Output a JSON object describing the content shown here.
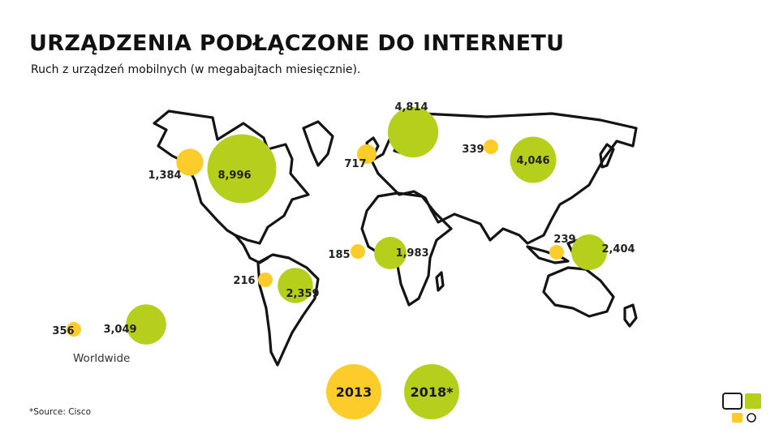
{
  "title": "URZĄDZENIA PODŁĄCZONE DO INTERNETU",
  "subtitle": "Ruch z urządzeń mobilnych (w megabajtach miesięcznie).",
  "source": "*Source: Cisco",
  "colors": {
    "y2013": "#fccd2a",
    "y2018": "#b6cf1c",
    "outline": "#141414"
  },
  "chart_data": {
    "type": "bubble-map",
    "legend": [
      {
        "key": "2013",
        "label": "2013",
        "color": "#fccd2a"
      },
      {
        "key": "2018",
        "label": "2018*",
        "color": "#b6cf1c"
      }
    ],
    "regions": [
      {
        "id": "north-america-west",
        "label": "",
        "v2013": 1384,
        "v2013_label": "1,384",
        "v2018": 8996,
        "v2018_label": "8,996"
      },
      {
        "id": "europe-north",
        "label": "",
        "v2013": 717,
        "v2013_label": "717",
        "v2018": 4814,
        "v2018_label": "4,814"
      },
      {
        "id": "asia-north",
        "label": "",
        "v2013": 339,
        "v2013_label": "339",
        "v2018": 4046,
        "v2018_label": "4,046"
      },
      {
        "id": "africa",
        "label": "",
        "v2013": 185,
        "v2013_label": "185",
        "v2018": 1983,
        "v2018_label": "1,983"
      },
      {
        "id": "asia-pacific",
        "label": "",
        "v2013": 239,
        "v2013_label": "239",
        "v2018": 2404,
        "v2018_label": "2,404"
      },
      {
        "id": "latin-america",
        "label": "",
        "v2013": 216,
        "v2013_label": "216",
        "v2018": 2359,
        "v2018_label": "2,359"
      },
      {
        "id": "worldwide",
        "label": "Worldwide",
        "v2013": 356,
        "v2013_label": "356",
        "v2018": 3049,
        "v2018_label": "3,049"
      }
    ]
  }
}
